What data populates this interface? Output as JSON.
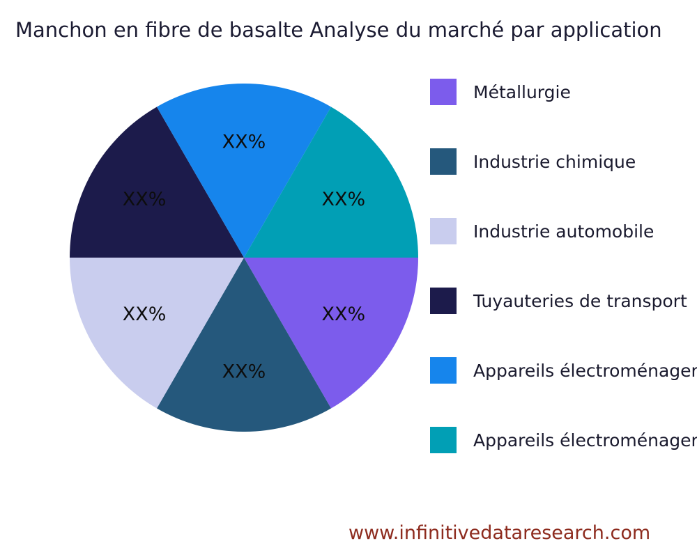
{
  "title": "Manchon en fibre de basalte Analyse du marché par application",
  "footer": {
    "url": "www.infinitivedataresearch.com"
  },
  "chart_data": {
    "type": "pie",
    "title": "Manchon en fibre de basalte Analyse du marché par application",
    "legend_position": "right",
    "start_angle_deg": 0,
    "direction": "clockwise",
    "value_labels_placeholder": true,
    "slices": [
      {
        "label": "Métallurgie",
        "value_text": "XX%",
        "value": 16.67,
        "color": "#7c5cec"
      },
      {
        "label": "Industrie chimique",
        "value_text": "XX%",
        "value": 16.67,
        "color": "#25587c"
      },
      {
        "label": "Industrie automobile",
        "value_text": "XX%",
        "value": 16.67,
        "color": "#c9cdee"
      },
      {
        "label": "Tuyauteries de transport",
        "value_text": "XX%",
        "value": 16.67,
        "color": "#1c1b4b"
      },
      {
        "label": "Appareils électroménagers",
        "value_text": "XX%",
        "value": 16.67,
        "color": "#1685ec"
      },
      {
        "label": "Appareils électroménagers",
        "value_text": "XX%",
        "value": 16.67,
        "color": "#019fb5"
      }
    ]
  }
}
